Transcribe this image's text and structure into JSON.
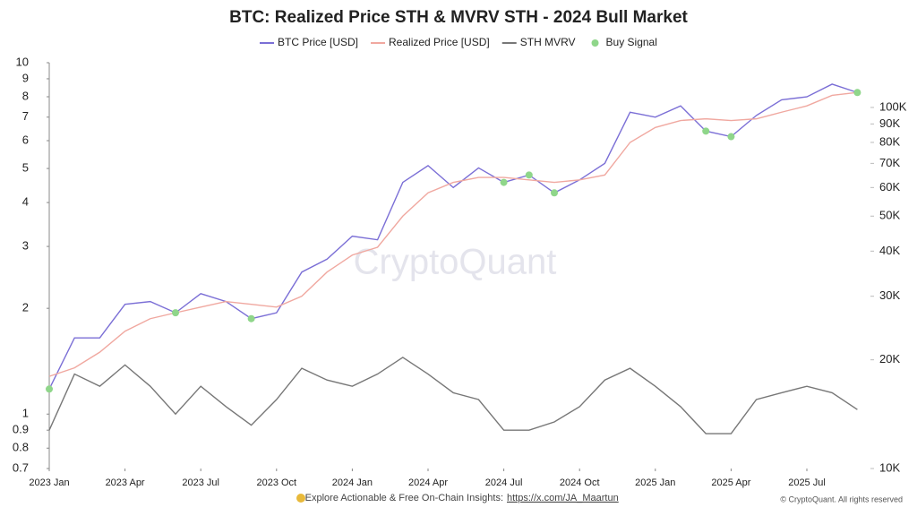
{
  "chart_data": {
    "type": "line",
    "title": "BTC: Realized Price STH & MVRV STH - 2024 Bull Market",
    "x": [
      "2023-01",
      "2023-02",
      "2023-03",
      "2023-04",
      "2023-05",
      "2023-06",
      "2023-07",
      "2023-08",
      "2023-09",
      "2023-10",
      "2023-11",
      "2023-12",
      "2024-01",
      "2024-02",
      "2024-03",
      "2024-04",
      "2024-05",
      "2024-06",
      "2024-07",
      "2024-08",
      "2024-09",
      "2024-10",
      "2024-11",
      "2024-12",
      "2025-01",
      "2025-02",
      "2025-03",
      "2025-04",
      "2025-05",
      "2025-06",
      "2025-07",
      "2025-08",
      "2025-09"
    ],
    "series": [
      {
        "name": "BTC Price [USD]",
        "color": "#7b6fd6",
        "axis": "y2",
        "values": [
          16600,
          23000,
          23000,
          28500,
          29000,
          27000,
          30500,
          29000,
          26000,
          27000,
          35000,
          38000,
          44000,
          43000,
          62000,
          69000,
          60000,
          68000,
          62000,
          65000,
          58000,
          63000,
          70000,
          97000,
          94000,
          101000,
          86000,
          83000,
          95000,
          105000,
          107000,
          116000,
          110000
        ]
      },
      {
        "name": "Realized Price [USD]",
        "color": "#f0a8a0",
        "axis": "y2",
        "values": [
          18000,
          19000,
          21000,
          24000,
          26000,
          27000,
          28000,
          29000,
          28500,
          28000,
          30000,
          35000,
          39000,
          41000,
          50000,
          58000,
          62000,
          64000,
          64000,
          63000,
          62000,
          63000,
          65000,
          80000,
          88000,
          92000,
          93000,
          92000,
          93000,
          97000,
          101000,
          108000,
          110000
        ]
      },
      {
        "name": "STH MVRV",
        "color": "#777777",
        "axis": "y",
        "values": [
          0.9,
          1.3,
          1.2,
          1.38,
          1.2,
          1.0,
          1.2,
          1.05,
          0.93,
          1.1,
          1.35,
          1.25,
          1.2,
          1.3,
          1.45,
          1.3,
          1.15,
          1.1,
          0.9,
          0.9,
          0.95,
          1.05,
          1.25,
          1.35,
          1.2,
          1.05,
          0.88,
          0.88,
          1.1,
          1.15,
          1.2,
          1.15,
          1.03
        ]
      },
      {
        "name": "Buy Signal",
        "color": "#8fd68a",
        "axis": "y2",
        "type": "scatter",
        "values": [
          16600,
          null,
          null,
          null,
          null,
          27000,
          null,
          null,
          26000,
          null,
          null,
          null,
          null,
          null,
          null,
          null,
          null,
          null,
          62000,
          65000,
          58000,
          null,
          null,
          null,
          null,
          null,
          86000,
          83000,
          null,
          null,
          null,
          null,
          110000
        ]
      }
    ],
    "log_scale": true,
    "ylim": [
      0.7,
      10
    ],
    "yticks": [
      0.7,
      0.8,
      0.9,
      1,
      2,
      3,
      4,
      5,
      6,
      7,
      8,
      9,
      10
    ],
    "y2lim": [
      10000,
      133000
    ],
    "y2ticks": [
      {
        "value": 10000,
        "label": "10K"
      },
      {
        "value": 20000,
        "label": "20K"
      },
      {
        "value": 30000,
        "label": "30K"
      },
      {
        "value": 40000,
        "label": "40K"
      },
      {
        "value": 50000,
        "label": "50K"
      },
      {
        "value": 60000,
        "label": "60K"
      },
      {
        "value": 70000,
        "label": "70K"
      },
      {
        "value": 80000,
        "label": "80K"
      },
      {
        "value": 90000,
        "label": "90K"
      },
      {
        "value": 100000,
        "label": "100K"
      }
    ],
    "xticks": [
      {
        "value": "2023-01",
        "label": "2023 Jan"
      },
      {
        "value": "2023-04",
        "label": "2023 Apr"
      },
      {
        "value": "2023-07",
        "label": "2023 Jul"
      },
      {
        "value": "2023-10",
        "label": "2023 Oct"
      },
      {
        "value": "2024-01",
        "label": "2024 Jan"
      },
      {
        "value": "2024-04",
        "label": "2024 Apr"
      },
      {
        "value": "2024-07",
        "label": "2024 Jul"
      },
      {
        "value": "2024-10",
        "label": "2024 Oct"
      },
      {
        "value": "2025-01",
        "label": "2025 Jan"
      },
      {
        "value": "2025-04",
        "label": "2025 Apr"
      },
      {
        "value": "2025-07",
        "label": "2025 Jul"
      }
    ],
    "legend": "top"
  },
  "watermark": "CryptoQuant",
  "footer": {
    "text": "Explore Actionable & Free On-Chain Insights:",
    "link": "https://x.com/JA_Maartun",
    "copyright": "© CryptoQuant. All rights reserved"
  }
}
